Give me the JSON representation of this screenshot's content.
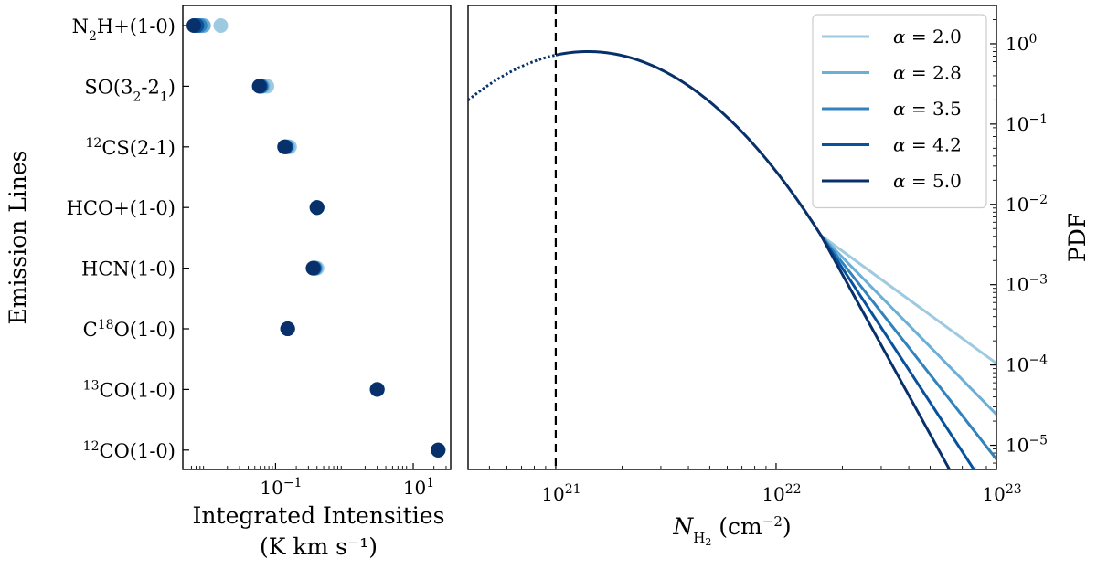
{
  "chart_data": [
    {
      "type": "scatter",
      "ylabel": "Emission Lines",
      "xlabel": "Integrated Intensities",
      "xlabel_unit": "(K km s⁻¹)",
      "xscale": "log",
      "xticks": [
        {
          "value": 0.1,
          "base": "10",
          "exp": "−1"
        },
        {
          "value": 10,
          "base": "10",
          "exp": "1"
        }
      ],
      "xlim": [
        0.0045,
        35
      ],
      "categories": [
        {
          "pre": "",
          "parts": [
            [
              "N",
              ""
            ],
            [
              "2",
              "sub"
            ],
            [
              "H+(1-0)",
              ""
            ]
          ]
        },
        {
          "pre": "",
          "parts": [
            [
              "SO(3",
              ""
            ],
            [
              "2",
              "sub"
            ],
            [
              "-2",
              ""
            ],
            [
              "1",
              "sub"
            ],
            [
              ")",
              ""
            ]
          ]
        },
        {
          "pre": "12",
          "parts": [
            [
              "CS(2-1)",
              ""
            ]
          ]
        },
        {
          "pre": "",
          "parts": [
            [
              "HCO+(1-0)",
              ""
            ]
          ]
        },
        {
          "pre": "",
          "parts": [
            [
              "HCN(1-0)",
              ""
            ]
          ]
        },
        {
          "pre": "",
          "parts": [
            [
              "C",
              ""
            ],
            [
              "18",
              "sup"
            ],
            [
              "O(1-0)",
              ""
            ]
          ]
        },
        {
          "pre": "13",
          "parts": [
            [
              "CO(1-0)",
              ""
            ]
          ]
        },
        {
          "pre": "12",
          "parts": [
            [
              "CO(1-0)",
              ""
            ]
          ]
        }
      ],
      "series_values": [
        [
          0.016,
          0.075,
          0.16,
          0.4,
          0.4,
          0.15,
          3.0,
          23.0
        ],
        [
          0.009,
          0.065,
          0.15,
          0.4,
          0.38,
          0.15,
          3.0,
          23.0
        ],
        [
          0.008,
          0.062,
          0.14,
          0.4,
          0.37,
          0.15,
          3.0,
          23.0
        ],
        [
          0.0072,
          0.06,
          0.14,
          0.4,
          0.36,
          0.15,
          3.0,
          23.0
        ],
        [
          0.0065,
          0.058,
          0.135,
          0.4,
          0.35,
          0.15,
          3.0,
          23.0
        ]
      ]
    },
    {
      "type": "line",
      "xlabel": {
        "sym": "N",
        "sub": "H",
        "subsub": "2",
        "unit": "(cm",
        "unit_exp": "−2",
        "unit_close": ")"
      },
      "ylabel": "PDF",
      "xscale": "log",
      "yscale": "log",
      "xlim": [
        4e+20,
        1e+23
      ],
      "ylim": [
        5e-06,
        3
      ],
      "xticks": [
        {
          "value": 1e+21,
          "base": "10",
          "exp": "21"
        },
        {
          "value": 1e+22,
          "base": "10",
          "exp": "22"
        },
        {
          "value": 1e+23,
          "base": "10",
          "exp": "23"
        }
      ],
      "yticks": [
        {
          "value": 1,
          "base": "10",
          "exp": "0"
        },
        {
          "value": 0.1,
          "base": "10",
          "exp": "−1"
        },
        {
          "value": 0.01,
          "base": "10",
          "exp": "−2"
        },
        {
          "value": 0.001,
          "base": "10",
          "exp": "−3"
        },
        {
          "value": 0.0001,
          "base": "10",
          "exp": "−4"
        },
        {
          "value": 1e-05,
          "base": "10",
          "exp": "−5"
        }
      ],
      "vline_x": 1e+21,
      "lognormal": {
        "peak_x": 1.4e+21,
        "peak_y": 0.8,
        "sigma": 0.75
      },
      "transition_x": 1.6e+22,
      "legend": {
        "placement": "top-right",
        "prefix": "α = "
      },
      "series": [
        {
          "name": "2.0",
          "alpha": 2.0,
          "color": "#9ecae1"
        },
        {
          "name": "2.8",
          "alpha": 2.8,
          "color": "#6baed6"
        },
        {
          "name": "3.5",
          "alpha": 3.5,
          "color": "#3182bd"
        },
        {
          "name": "4.2",
          "alpha": 4.2,
          "color": "#08519c"
        },
        {
          "name": "5.0",
          "alpha": 5.0,
          "color": "#08306b"
        }
      ]
    }
  ]
}
